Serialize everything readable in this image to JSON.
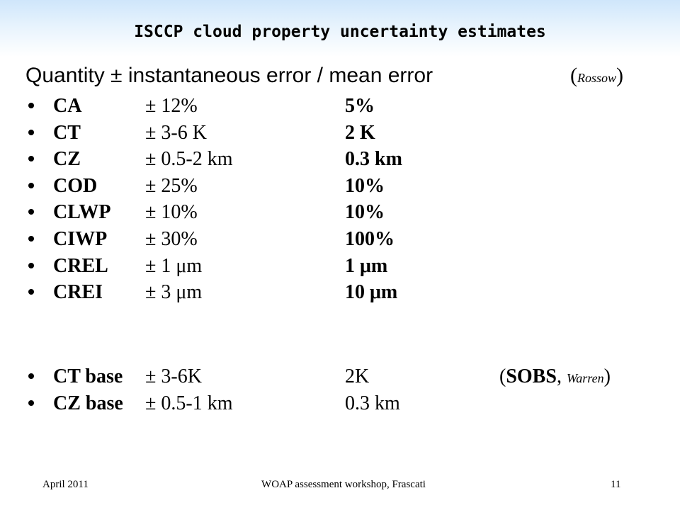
{
  "header": {
    "title": "ISCCP cloud property uncertainty estimates"
  },
  "intro": {
    "text": "Quantity ± instantaneous error / mean error",
    "note": [
      "(",
      "Rossow",
      ")"
    ]
  },
  "rows": [
    {
      "quantity": "CA",
      "instantaneous": "± 12%",
      "mean": "5%"
    },
    {
      "quantity": "CT",
      "instantaneous": "± 3-6 K",
      "mean": "2 K"
    },
    {
      "quantity": "CZ",
      "instantaneous": "± 0.5-2 km",
      "mean": "0.3 km"
    },
    {
      "quantity": "COD",
      "instantaneous": "± 25%",
      "mean": "10%"
    },
    {
      "quantity": "CLWP",
      "instantaneous": "± 10%",
      "mean": "10%"
    },
    {
      "quantity": "CIWP",
      "instantaneous": "± 30%",
      "mean": "100%"
    },
    {
      "quantity": "CREL",
      "instantaneous": "± 1 μm",
      "mean": "1 μm"
    },
    {
      "quantity": "CREI",
      "instantaneous": "± 3 μm",
      "mean": "10 μm"
    }
  ],
  "base_rows": [
    {
      "quantity": "CT base",
      "instantaneous": "± 3-6K",
      "mean": "2K",
      "note": [
        "(",
        "SOBS",
        ", ",
        "Warren",
        ")"
      ]
    },
    {
      "quantity": "CZ base",
      "instantaneous": "± 0.5-1 km",
      "mean": "0.3 km"
    }
  ],
  "footer": {
    "date": "April 2011",
    "event": "WOAP assessment workshop, Frascati",
    "page": "11"
  }
}
